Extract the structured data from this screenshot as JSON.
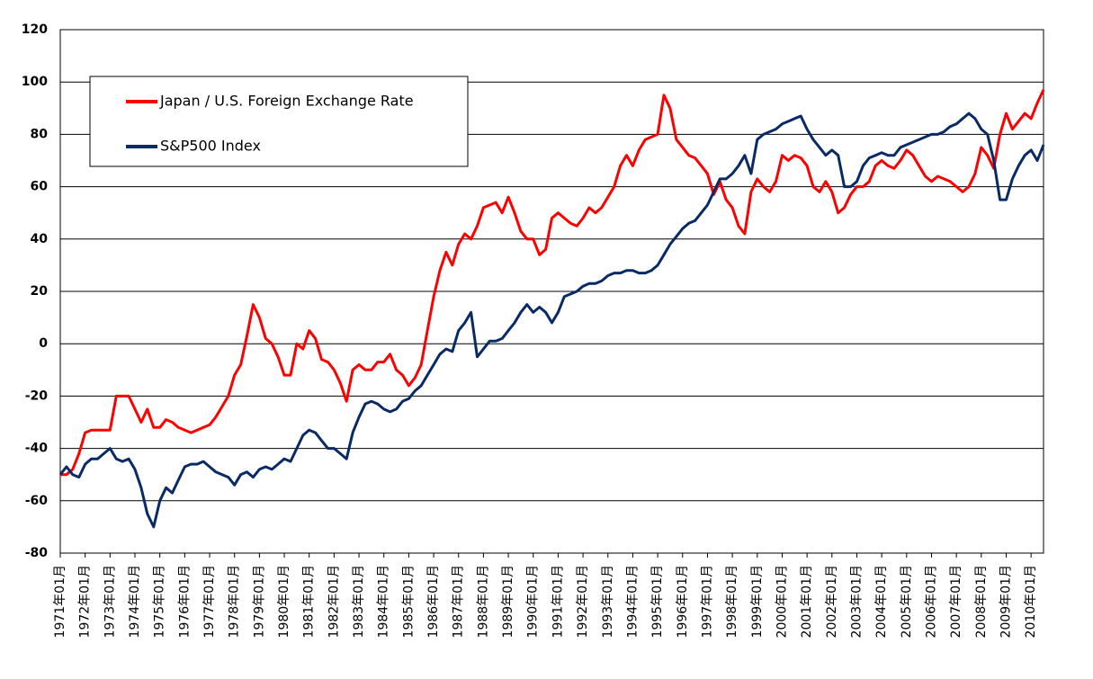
{
  "chart_data": {
    "type": "line",
    "categories": [
      "1971年01月",
      null,
      null,
      null,
      "1972年01月",
      null,
      null,
      null,
      "1973年01月",
      null,
      null,
      null,
      "1974年01月",
      null,
      null,
      null,
      "1975年01月",
      null,
      null,
      null,
      "1976年01月",
      null,
      null,
      null,
      "1977年01月",
      null,
      null,
      null,
      "1978年01月",
      null,
      null,
      null,
      "1979年01月",
      null,
      null,
      null,
      "1980年01月",
      null,
      null,
      null,
      "1981年01月",
      null,
      null,
      null,
      "1982年01月",
      null,
      null,
      null,
      "1983年01月",
      null,
      null,
      null,
      "1984年01月",
      null,
      null,
      null,
      "1985年01月",
      null,
      null,
      null,
      "1986年01月",
      null,
      null,
      null,
      "1987年01月",
      null,
      null,
      null,
      "1988年01月",
      null,
      null,
      null,
      "1989年01月",
      null,
      null,
      null,
      "1990年01月",
      null,
      null,
      null,
      "1991年01月",
      null,
      null,
      null,
      "1992年01月",
      null,
      null,
      null,
      "1993年01月",
      null,
      null,
      null,
      "1994年01月",
      null,
      null,
      null,
      "1995年01月",
      null,
      null,
      null,
      "1996年01月",
      null,
      null,
      null,
      "1997年01月",
      null,
      null,
      null,
      "1998年01月",
      null,
      null,
      null,
      "1999年01月",
      null,
      null,
      null,
      "2000年01月",
      null,
      null,
      null,
      "2001年01月",
      null,
      null,
      null,
      "2002年01月",
      null,
      null,
      null,
      "2003年01月",
      null,
      null,
      null,
      "2004年01月",
      null,
      null,
      null,
      "2005年01月",
      null,
      null,
      null,
      "2006年01月",
      null,
      null,
      null,
      "2007年01月",
      null,
      null,
      null,
      "2008年01月",
      null,
      null,
      null,
      "2009年01月",
      null,
      null,
      null,
      "2010年01月",
      null,
      null
    ],
    "series": [
      {
        "name": "Japan / U.S. Foreign Exchange Rate",
        "color": "#ff0000",
        "values": [
          -50,
          -50,
          -48,
          -42,
          -34,
          -33,
          -33,
          -33,
          -33,
          -20,
          -20,
          -20,
          -25,
          -30,
          -25,
          -32,
          -32,
          -29,
          -30,
          -32,
          -33,
          -34,
          -33,
          -32,
          -31,
          -28,
          -24,
          -20,
          -12,
          -8,
          3,
          15,
          10,
          2,
          0,
          -5,
          -12,
          -12,
          0,
          -2,
          5,
          2,
          -6,
          -7,
          -10,
          -15,
          -22,
          -10,
          -8,
          -10,
          -10,
          -7,
          -7,
          -4,
          -10,
          -12,
          -16,
          -13,
          -8,
          5,
          18,
          28,
          35,
          30,
          38,
          42,
          40,
          45,
          52,
          53,
          54,
          50,
          56,
          50,
          43,
          40,
          40,
          34,
          36,
          48,
          50,
          48,
          46,
          45,
          48,
          52,
          50,
          52,
          56,
          60,
          68,
          72,
          68,
          74,
          78,
          79,
          80,
          95,
          90,
          78,
          75,
          72,
          71,
          68,
          65,
          57,
          62,
          55,
          52,
          45,
          42,
          58,
          63,
          60,
          58,
          62,
          72,
          70,
          72,
          71,
          68,
          60,
          58,
          62,
          58,
          50,
          52,
          57,
          60,
          60,
          62,
          68,
          70,
          68,
          67,
          70,
          74,
          72,
          68,
          64,
          62,
          64,
          63,
          62,
          60,
          58,
          60,
          65,
          75,
          72,
          67,
          80,
          88,
          82,
          85,
          88,
          86,
          92,
          97
        ]
      },
      {
        "name": "S&P500 Index",
        "color": "#0a2a66",
        "values": [
          -50,
          -47,
          -50,
          -51,
          -46,
          -44,
          -44,
          -42,
          -40,
          -44,
          -45,
          -44,
          -48,
          -55,
          -65,
          -70,
          -60,
          -55,
          -57,
          -52,
          -47,
          -46,
          -46,
          -45,
          -47,
          -49,
          -50,
          -51,
          -54,
          -50,
          -49,
          -51,
          -48,
          -47,
          -48,
          -46,
          -44,
          -45,
          -40,
          -35,
          -33,
          -34,
          -37,
          -40,
          -40,
          -42,
          -44,
          -34,
          -28,
          -23,
          -22,
          -23,
          -25,
          -26,
          -25,
          -22,
          -21,
          -18,
          -16,
          -12,
          -8,
          -4,
          -2,
          -3,
          5,
          8,
          12,
          -5,
          -2,
          1,
          1,
          2,
          5,
          8,
          12,
          15,
          12,
          14,
          12,
          8,
          12,
          18,
          19,
          20,
          22,
          23,
          23,
          24,
          26,
          27,
          27,
          28,
          28,
          27,
          27,
          28,
          30,
          34,
          38,
          41,
          44,
          46,
          47,
          50,
          53,
          58,
          63,
          63,
          65,
          68,
          72,
          65,
          78,
          80,
          81,
          82,
          84,
          85,
          86,
          87,
          82,
          78,
          75,
          72,
          74,
          72,
          60,
          60,
          62,
          68,
          71,
          72,
          73,
          72,
          72,
          75,
          76,
          77,
          78,
          79,
          80,
          80,
          81,
          83,
          84,
          86,
          88,
          86,
          82,
          80,
          70,
          55,
          55,
          63,
          68,
          72,
          74,
          70,
          76
        ]
      }
    ],
    "ylim": [
      -80,
      120
    ],
    "yticks": [
      -80,
      -60,
      -40,
      -20,
      0,
      20,
      40,
      60,
      80,
      100,
      120
    ],
    "grid": true
  }
}
